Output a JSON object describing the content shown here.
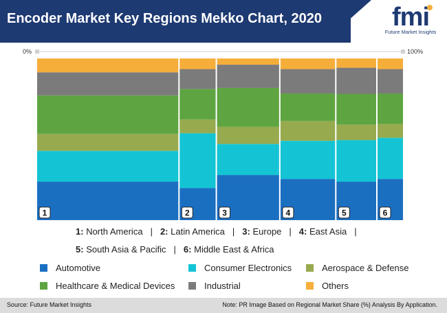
{
  "header": {
    "title": "Encoder Market Key Regions Mekko Chart, 2020"
  },
  "logo": {
    "wordmark": "fmi",
    "tagline": "Future Market Insights"
  },
  "axis": {
    "left_label": "0%",
    "right_label": "100%"
  },
  "colors": {
    "Automotive": "#1b6fc1",
    "Consumer Electronics": "#14c4d4",
    "Aerospace & Defense": "#97aa4e",
    "Healthcare & Medical Devices": "#5ea542",
    "Industrial": "#7b7b7b",
    "Others": "#f6ae3b",
    "header": "#1e3a72"
  },
  "chart_data": {
    "type": "mekko",
    "title": "Encoder Market Key Regions Mekko Chart, 2020",
    "x_range": [
      "0%",
      "100%"
    ],
    "regions": [
      {
        "id": "1",
        "name": "North America",
        "width_share": 38
      },
      {
        "id": "2",
        "name": "Latin America",
        "width_share": 10
      },
      {
        "id": "3",
        "name": "Europe",
        "width_share": 17
      },
      {
        "id": "4",
        "name": "East Asia",
        "width_share": 15
      },
      {
        "id": "5",
        "name": "South Asia & Pacific",
        "width_share": 11
      },
      {
        "id": "6",
        "name": "Middle East & Africa",
        "width_share": 7
      }
    ],
    "series": [
      {
        "name": "Automotive",
        "values": [
          25,
          21,
          29,
          27,
          25,
          27
        ]
      },
      {
        "name": "Consumer Electronics",
        "values": [
          20,
          36,
          20,
          25,
          27,
          27
        ]
      },
      {
        "name": "Aerospace & Defense",
        "values": [
          11,
          9,
          11,
          13,
          10,
          9
        ]
      },
      {
        "name": "Healthcare & Medical Devices",
        "values": [
          25,
          20,
          25,
          18,
          20,
          20
        ]
      },
      {
        "name": "Industrial",
        "values": [
          15,
          13,
          15,
          16,
          17,
          16
        ]
      },
      {
        "name": "Others",
        "values": [
          9,
          7,
          4,
          7,
          6,
          7
        ]
      }
    ]
  },
  "region_legend": {
    "line1": [
      {
        "num": "1:",
        "name": "North America"
      },
      {
        "num": "2:",
        "name": "Latin America"
      },
      {
        "num": "3:",
        "name": "Europe"
      },
      {
        "num": "4:",
        "name": "East Asia"
      }
    ],
    "line2": [
      {
        "num": "5:",
        "name": "South Asia & Pacific"
      },
      {
        "num": "6:",
        "name": "Middle East & Africa"
      }
    ],
    "separator": "|"
  },
  "footer": {
    "source": "Source: Future Market Insights",
    "note": "Note: PR Image Based on Regional Market Share (%) Analysis By Application."
  }
}
